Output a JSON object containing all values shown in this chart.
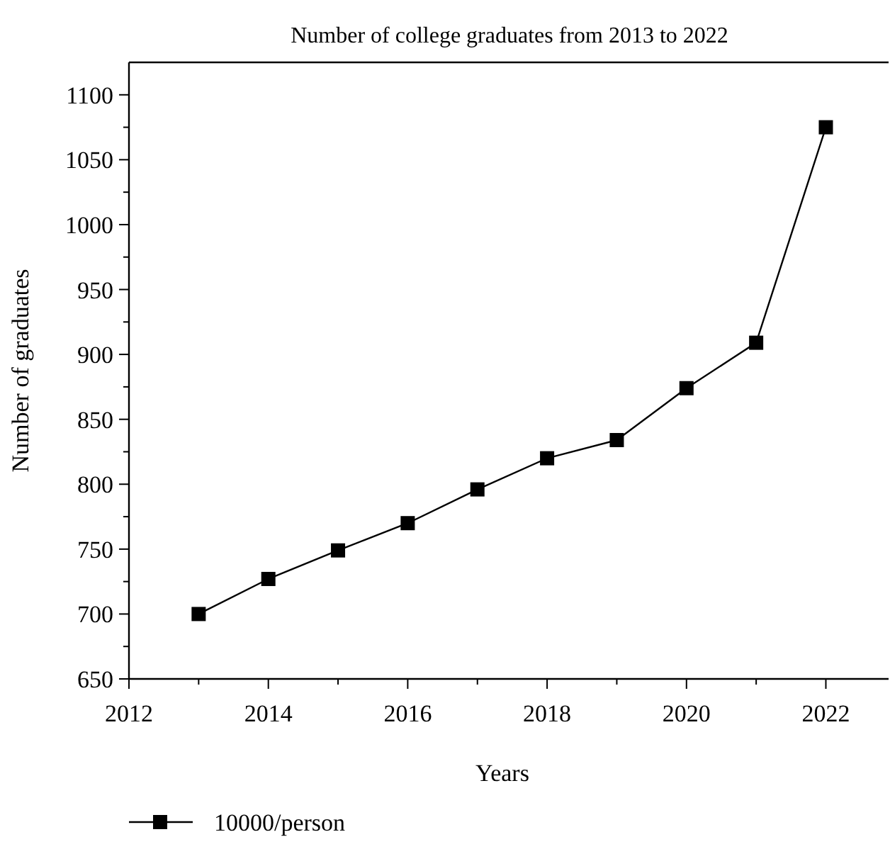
{
  "chart_data": {
    "type": "line",
    "title": "Number of college graduates from 2013 to 2022",
    "xlabel": "Years",
    "ylabel": "Number of graduates",
    "x": [
      2013,
      2014,
      2015,
      2016,
      2017,
      2018,
      2019,
      2020,
      2021,
      2022
    ],
    "series": [
      {
        "name": "10000/person",
        "color": "#000000",
        "values": [
          700,
          727,
          749,
          770,
          796,
          820,
          834,
          874,
          909,
          1075
        ]
      }
    ],
    "xlim": [
      2012,
      2022.9
    ],
    "xticks": [
      2012,
      {
        "value": 2013,
        "label": null
      },
      2014,
      {
        "value": 2015,
        "label": null
      },
      2016,
      {
        "value": 2017,
        "label": null
      },
      2018,
      {
        "value": 2019,
        "label": null
      },
      2020,
      {
        "value": 2021,
        "label": null
      },
      2022
    ],
    "ylim": [
      650,
      1125
    ],
    "yticks": [
      650,
      {
        "value": 675,
        "label": null
      },
      700,
      {
        "value": 725,
        "label": null
      },
      750,
      {
        "value": 775,
        "label": null
      },
      800,
      {
        "value": 825,
        "label": null
      },
      850,
      {
        "value": 875,
        "label": null
      },
      900,
      {
        "value": 925,
        "label": null
      },
      950,
      {
        "value": 975,
        "label": null
      },
      1000,
      {
        "value": 1025,
        "label": null
      },
      1050,
      {
        "value": 1075,
        "label": null
      },
      1100
    ],
    "marker": "square",
    "line_style": "solid",
    "legend": "bottom",
    "grid": false
  }
}
